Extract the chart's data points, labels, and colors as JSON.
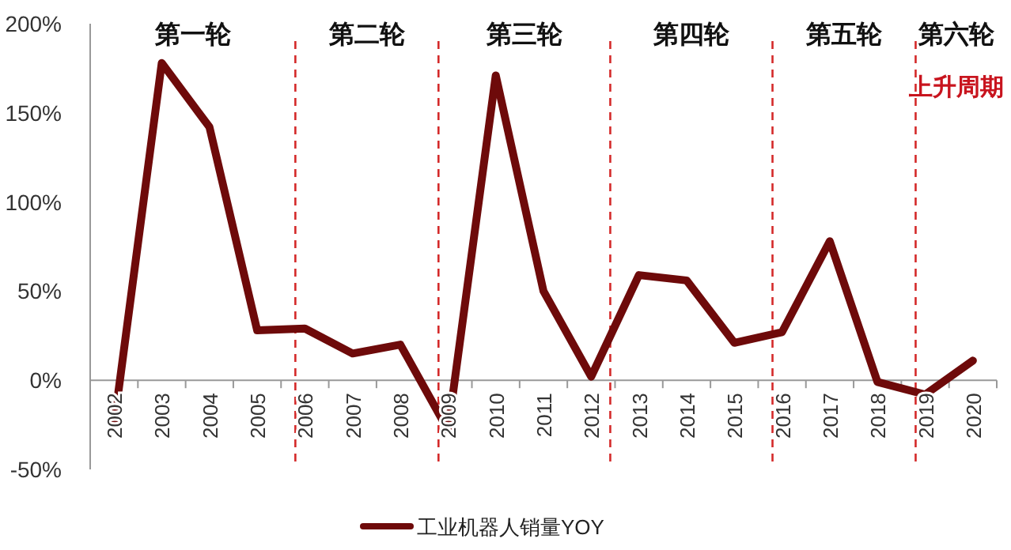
{
  "chart_data": {
    "type": "line",
    "x": [
      2002,
      2003,
      2004,
      2005,
      2006,
      2007,
      2008,
      2009,
      2010,
      2011,
      2012,
      2013,
      2014,
      2015,
      2016,
      2017,
      2018,
      2019,
      2020
    ],
    "series": [
      {
        "name": "工业机器人销量YOY",
        "color": "#6e0a0a",
        "values": [
          -25,
          178,
          142,
          28,
          29,
          15,
          20,
          -28,
          171,
          50,
          2,
          59,
          56,
          21,
          27,
          78,
          -1,
          -8,
          11
        ]
      }
    ],
    "xlim": [
      2001.5,
      2020.5
    ],
    "xticks": [
      2002,
      2003,
      2004,
      2005,
      2006,
      2007,
      2008,
      2009,
      2010,
      2011,
      2012,
      2013,
      2014,
      2015,
      2016,
      2017,
      2018,
      2019,
      2020
    ],
    "ylim": [
      -50,
      200
    ],
    "yticks": [
      {
        "value": -50,
        "label": "-50%"
      },
      {
        "value": 0,
        "label": "0%"
      },
      {
        "value": 50,
        "label": "50%"
      },
      {
        "value": 100,
        "label": "100%"
      },
      {
        "value": 150,
        "label": "150%"
      },
      {
        "value": 200,
        "label": "200%"
      }
    ],
    "ref_lines": [
      {
        "axis": "x",
        "value": 2005.8,
        "color": "#d42a2a",
        "line_style": "dashed"
      },
      {
        "axis": "x",
        "value": 2008.8,
        "color": "#d42a2a",
        "line_style": "dashed"
      },
      {
        "axis": "x",
        "value": 2012.4,
        "color": "#d42a2a",
        "line_style": "dashed"
      },
      {
        "axis": "x",
        "value": 2015.8,
        "color": "#d42a2a",
        "line_style": "dashed"
      },
      {
        "axis": "x",
        "value": 2018.8,
        "color": "#d42a2a",
        "line_style": "dashed"
      }
    ],
    "annotations": [
      "第一轮",
      "第二轮",
      "第三轮",
      "第四轮",
      "第五轮",
      "第六轮",
      "上升周期"
    ],
    "grid": false,
    "legend": "bottom",
    "marker": "none",
    "line_style": "solid"
  }
}
